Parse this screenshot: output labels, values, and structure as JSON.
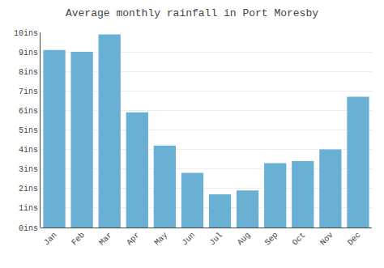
{
  "chart_data": {
    "type": "bar",
    "title": "Average monthly rainfall in Port Moresby",
    "categories": [
      "Jan",
      "Feb",
      "Mar",
      "Apr",
      "May",
      "Jun",
      "Jul",
      "Aug",
      "Sep",
      "Oct",
      "Nov",
      "Dec"
    ],
    "values": [
      9.1,
      9.0,
      9.9,
      5.9,
      4.2,
      2.8,
      1.7,
      1.9,
      3.3,
      3.4,
      4.0,
      6.7
    ],
    "color": "#6aafd4",
    "ylim": [
      0,
      10
    ],
    "yticks": [
      {
        "value": 0,
        "label": "0ins"
      },
      {
        "value": 1,
        "label": "1ins"
      },
      {
        "value": 2,
        "label": "2ins"
      },
      {
        "value": 3,
        "label": "3ins"
      },
      {
        "value": 4,
        "label": "4ins"
      },
      {
        "value": 5,
        "label": "5ins"
      },
      {
        "value": 6,
        "label": "6ins"
      },
      {
        "value": 7,
        "label": "7ins"
      },
      {
        "value": 8,
        "label": "8ins"
      },
      {
        "value": 9,
        "label": "9ins"
      },
      {
        "value": 10,
        "label": "10ins"
      }
    ],
    "grid": true
  }
}
